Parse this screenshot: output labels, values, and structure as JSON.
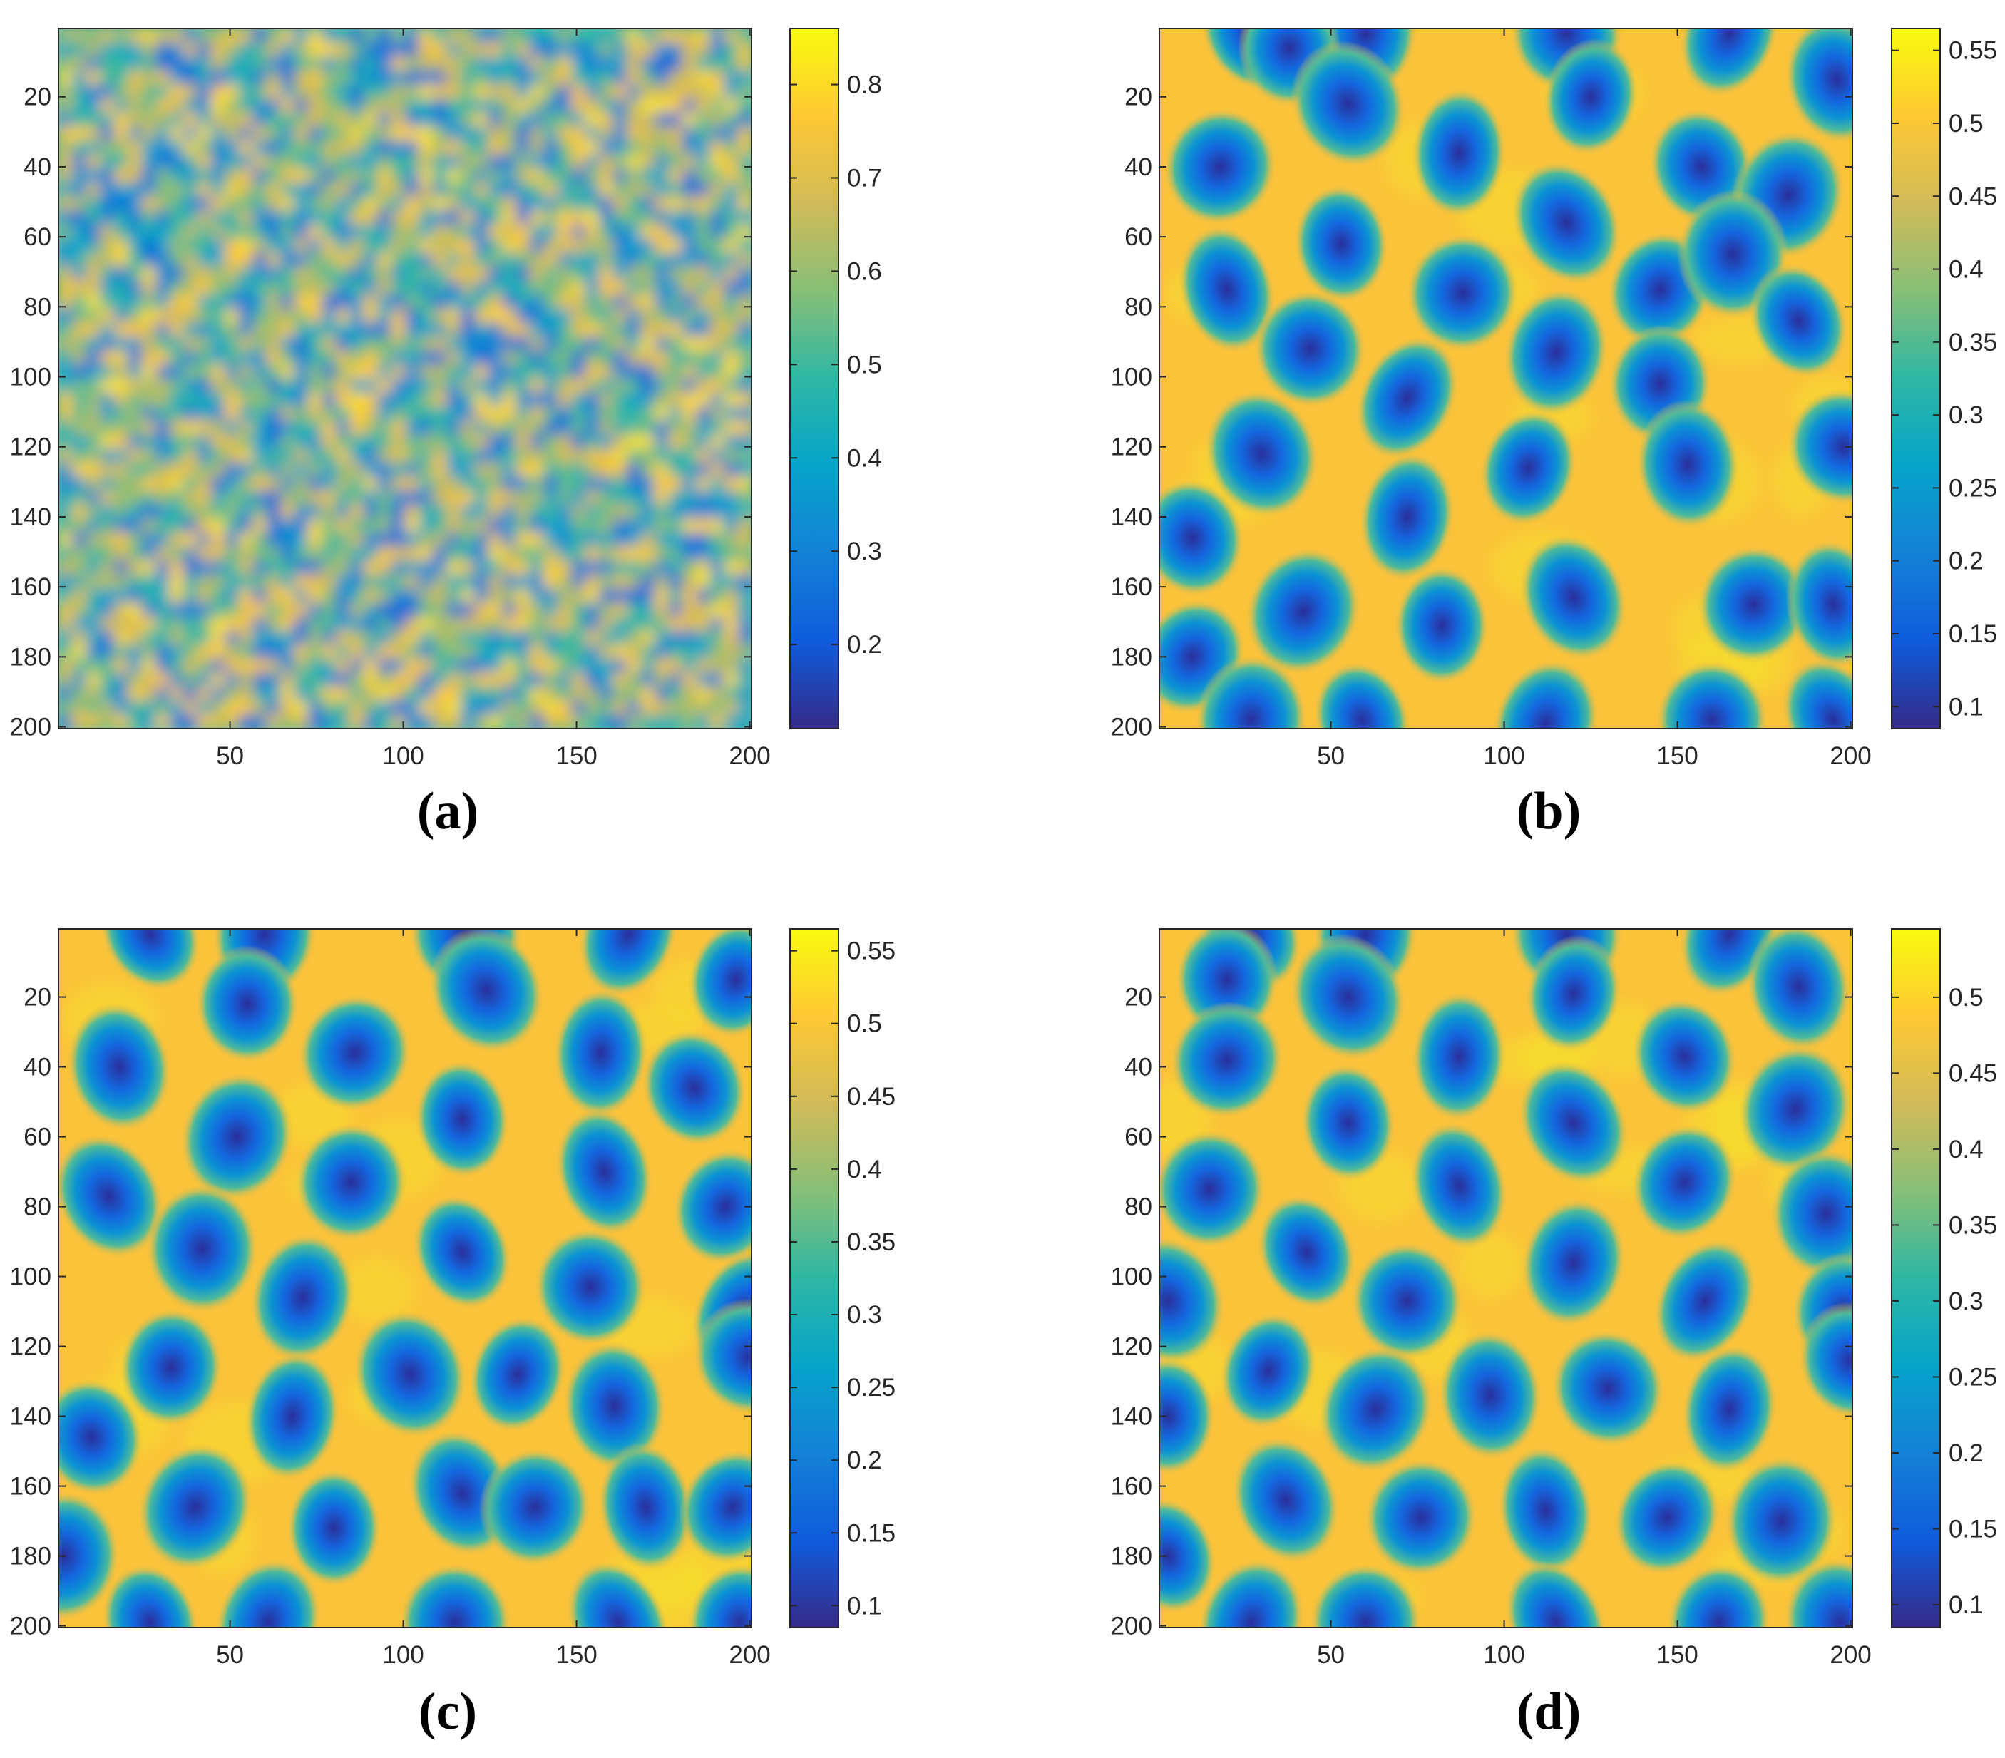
{
  "figure": {
    "colormap": "parula",
    "colormap_stops": [
      "#352a87",
      "#0f5cdd",
      "#1481d6",
      "#06a4ca",
      "#2eb7a4",
      "#87bf77",
      "#d1bb59",
      "#fec832",
      "#f9fb0e"
    ]
  },
  "chart_data": [
    {
      "type": "heatmap",
      "caption": "(a)",
      "pattern": "random noise (initial condition)",
      "grid_size": [
        200,
        200
      ],
      "x_ticks": [
        50,
        100,
        150,
        200
      ],
      "y_ticks": [
        20,
        40,
        60,
        80,
        100,
        120,
        140,
        160,
        180,
        200
      ],
      "xlim": [
        1,
        200
      ],
      "ylim": [
        1,
        200
      ],
      "y_axis_direction": "reversed",
      "colorbar": {
        "min": 0.11,
        "max": 0.86,
        "ticks": [
          0.2,
          0.3,
          0.4,
          0.5,
          0.6,
          0.7,
          0.8
        ]
      }
    },
    {
      "type": "heatmap",
      "caption": "(b)",
      "pattern": "spots and stripes, dark blue spots on yellow background",
      "grid_size": [
        200,
        200
      ],
      "x_ticks": [
        50,
        100,
        150,
        200
      ],
      "y_ticks": [
        20,
        40,
        60,
        80,
        100,
        120,
        140,
        160,
        180,
        200
      ],
      "xlim": [
        1,
        200
      ],
      "ylim": [
        1,
        200
      ],
      "y_axis_direction": "reversed",
      "colorbar": {
        "min": 0.085,
        "max": 0.565,
        "ticks": [
          0.1,
          0.15,
          0.2,
          0.25,
          0.3,
          0.35,
          0.4,
          0.45,
          0.5,
          0.55
        ]
      }
    },
    {
      "type": "heatmap",
      "caption": "(c)",
      "pattern": "mostly spots, a few stripes",
      "grid_size": [
        200,
        200
      ],
      "x_ticks": [
        50,
        100,
        150,
        200
      ],
      "y_ticks": [
        20,
        40,
        60,
        80,
        100,
        120,
        140,
        160,
        180,
        200
      ],
      "xlim": [
        1,
        200
      ],
      "ylim": [
        1,
        200
      ],
      "y_axis_direction": "reversed",
      "colorbar": {
        "min": 0.085,
        "max": 0.565,
        "ticks": [
          0.1,
          0.15,
          0.2,
          0.25,
          0.3,
          0.35,
          0.4,
          0.45,
          0.5,
          0.55
        ]
      }
    },
    {
      "type": "heatmap",
      "caption": "(d)",
      "pattern": "hexagonal spots",
      "grid_size": [
        200,
        200
      ],
      "x_ticks": [
        50,
        100,
        150,
        200
      ],
      "y_ticks": [
        20,
        40,
        60,
        80,
        100,
        120,
        140,
        160,
        180,
        200
      ],
      "xlim": [
        1,
        200
      ],
      "ylim": [
        1,
        200
      ],
      "y_axis_direction": "reversed",
      "colorbar": {
        "min": 0.085,
        "max": 0.545,
        "ticks": [
          0.1,
          0.15,
          0.2,
          0.25,
          0.3,
          0.35,
          0.4,
          0.45,
          0.5
        ]
      }
    }
  ]
}
